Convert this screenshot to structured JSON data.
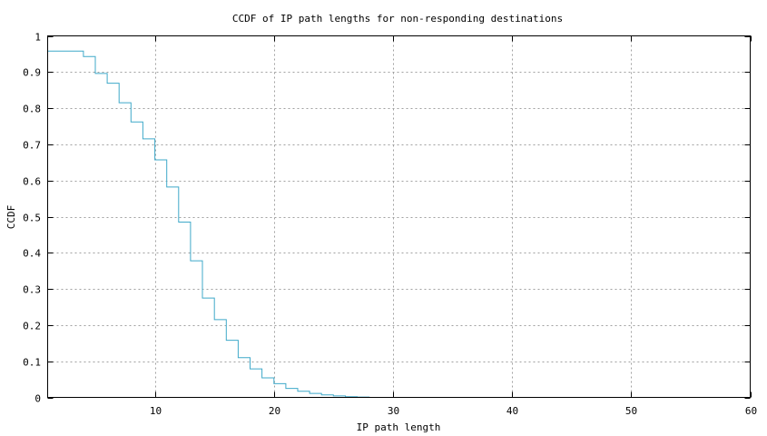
{
  "chart_data": {
    "type": "line",
    "step": true,
    "title": "CCDF of IP path lengths for non-responding destinations",
    "xlabel": "IP path length",
    "ylabel": "CCDF",
    "xlim": [
      1,
      60
    ],
    "ylim": [
      0,
      1
    ],
    "xticks": [
      10,
      20,
      30,
      40,
      50,
      60
    ],
    "yticks": [
      0,
      0.1,
      0.2,
      0.3,
      0.4,
      0.5,
      0.6,
      0.7,
      0.8,
      0.9,
      1
    ],
    "ytick_labels": [
      "0",
      "0.1",
      "0.2",
      "0.3",
      "0.4",
      "0.5",
      "0.6",
      "0.7",
      "0.8",
      "0.9",
      "1"
    ],
    "grid": true,
    "line_color": "#3fa9c9",
    "series": [
      {
        "x": [
          1,
          4,
          5,
          6,
          7,
          8,
          9,
          10,
          11,
          12,
          13,
          14,
          15,
          16,
          17,
          18,
          19,
          20,
          21,
          22,
          23,
          24,
          25,
          26,
          27,
          28
        ],
        "y": [
          0.958,
          0.943,
          0.896,
          0.869,
          0.815,
          0.762,
          0.715,
          0.657,
          0.582,
          0.485,
          0.378,
          0.275,
          0.215,
          0.158,
          0.11,
          0.079,
          0.054,
          0.038,
          0.025,
          0.017,
          0.011,
          0.007,
          0.004,
          0.002,
          0.001,
          0
        ]
      }
    ]
  }
}
